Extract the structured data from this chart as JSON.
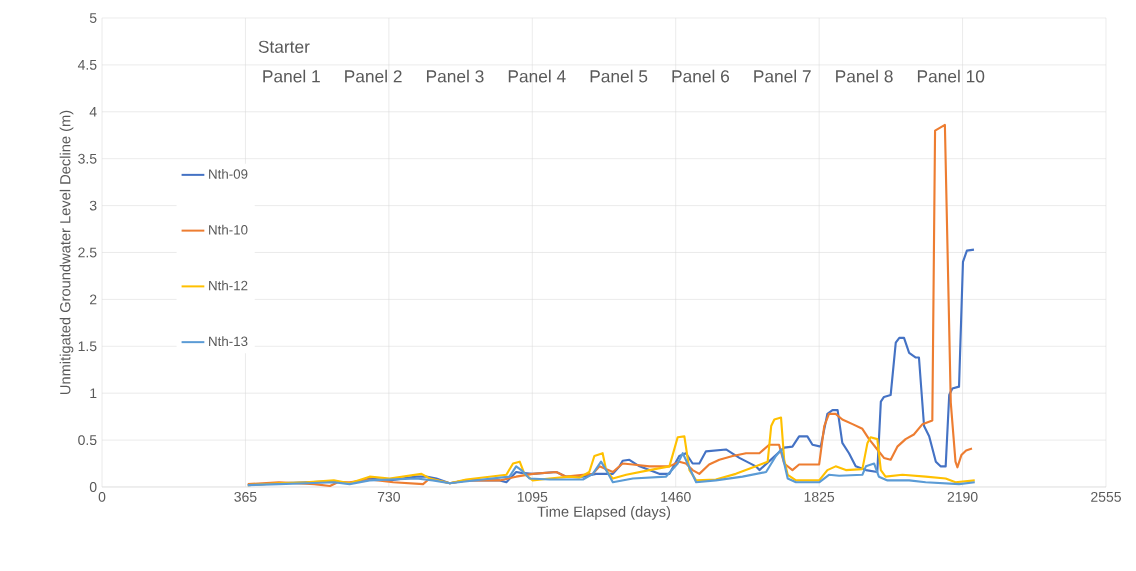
{
  "chart_data": {
    "type": "line",
    "xlabel": "Time Elapsed (days)",
    "ylabel": "Unmitigated Groundwater Level Decline (m)",
    "xlim": [
      0,
      2555
    ],
    "xticks": [
      0,
      365,
      730,
      1095,
      1460,
      1825,
      2190,
      2555
    ],
    "ylim": [
      0,
      5
    ],
    "yticks": [
      0,
      0.5,
      1,
      1.5,
      2,
      2.5,
      3,
      3.5,
      4,
      4.5,
      5
    ],
    "grid": true,
    "legend": "left",
    "annotations": [
      "Starter",
      "Panel 1",
      "Panel 2",
      "Panel 3",
      "Panel 4",
      "Panel 5",
      "Panel 6",
      "Panel 7",
      "Panel 8",
      "Panel 10"
    ],
    "series": [
      {
        "name": "Nth-09",
        "color": "#4472c4",
        "x": [
          371,
          450,
          520,
          590,
          630,
          681,
          732,
          800,
          825,
          851,
          885,
          927,
          1012,
          1029,
          1054,
          1067,
          1096,
          1156,
          1181,
          1224,
          1257,
          1300,
          1317,
          1325,
          1342,
          1368,
          1418,
          1444,
          1469,
          1486,
          1503,
          1520,
          1537,
          1588,
          1622,
          1664,
          1673,
          1736,
          1757,
          1774,
          1795,
          1808,
          1829,
          1846,
          1859,
          1872,
          1884,
          1901,
          1918,
          1944,
          1973,
          1982,
          1990,
          2007,
          2020,
          2029,
          2041,
          2054,
          2071,
          2079,
          2092,
          2105,
          2122,
          2134,
          2147,
          2156,
          2164,
          2181,
          2191,
          2201,
          2219
        ],
        "values": [
          0.02,
          0.04,
          0.05,
          0.06,
          0.04,
          0.09,
          0.07,
          0.11,
          0.11,
          0.09,
          0.04,
          0.07,
          0.07,
          0.05,
          0.16,
          0.15,
          0.14,
          0.16,
          0.11,
          0.11,
          0.14,
          0.14,
          0.22,
          0.28,
          0.29,
          0.22,
          0.14,
          0.14,
          0.33,
          0.36,
          0.25,
          0.25,
          0.38,
          0.4,
          0.31,
          0.22,
          0.18,
          0.42,
          0.43,
          0.54,
          0.54,
          0.45,
          0.43,
          0.78,
          0.82,
          0.82,
          0.47,
          0.36,
          0.22,
          0.18,
          0.16,
          0.91,
          0.96,
          0.98,
          1.54,
          1.59,
          1.59,
          1.43,
          1.38,
          1.38,
          0.65,
          0.54,
          0.27,
          0.22,
          0.22,
          0.98,
          1.05,
          1.07,
          2.4,
          2.52,
          2.53
        ]
      },
      {
        "name": "Nth-10",
        "color": "#ed7d31",
        "x": [
          371,
          450,
          540,
          580,
          600,
          630,
          681,
          741,
          817,
          834,
          885,
          927,
          1012,
          1054,
          1096,
          1156,
          1181,
          1249,
          1266,
          1300,
          1325,
          1351,
          1393,
          1444,
          1469,
          1486,
          1503,
          1520,
          1545,
          1571,
          1605,
          1639,
          1673,
          1698,
          1723,
          1736,
          1757,
          1774,
          1825,
          1838,
          1850,
          1867,
          1884,
          1910,
          1935,
          1952,
          1973,
          1990,
          2007,
          2024,
          2045,
          2066,
          2088,
          2113,
          2120,
          2145,
          2160,
          2172,
          2177,
          2187,
          2199,
          2214
        ],
        "values": [
          0.03,
          0.05,
          0.03,
          0.01,
          0.05,
          0.05,
          0.08,
          0.05,
          0.03,
          0.09,
          0.04,
          0.07,
          0.07,
          0.11,
          0.14,
          0.16,
          0.11,
          0.14,
          0.22,
          0.16,
          0.25,
          0.24,
          0.22,
          0.22,
          0.27,
          0.25,
          0.18,
          0.14,
          0.24,
          0.29,
          0.33,
          0.36,
          0.36,
          0.45,
          0.45,
          0.25,
          0.18,
          0.24,
          0.24,
          0.65,
          0.78,
          0.78,
          0.72,
          0.67,
          0.62,
          0.51,
          0.4,
          0.31,
          0.29,
          0.43,
          0.51,
          0.56,
          0.67,
          0.71,
          3.8,
          3.86,
          0.9,
          0.27,
          0.21,
          0.34,
          0.39,
          0.41
        ]
      },
      {
        "name": "Nth-12",
        "color": "#ffc000",
        "x": [
          371,
          450,
          520,
          590,
          630,
          681,
          732,
          813,
          834,
          885,
          927,
          1029,
          1046,
          1063,
          1075,
          1096,
          1139,
          1190,
          1215,
          1240,
          1253,
          1274,
          1283,
          1300,
          1334,
          1393,
          1444,
          1465,
          1482,
          1495,
          1512,
          1562,
          1613,
          1664,
          1694,
          1703,
          1711,
          1728,
          1736,
          1745,
          1766,
          1825,
          1846,
          1867,
          1893,
          1935,
          1948,
          1956,
          1973,
          1982,
          1994,
          2037,
          2096,
          2147,
          2172,
          2221
        ],
        "values": [
          0.02,
          0.04,
          0.05,
          0.07,
          0.04,
          0.11,
          0.09,
          0.14,
          0.09,
          0.04,
          0.08,
          0.13,
          0.25,
          0.27,
          0.14,
          0.07,
          0.09,
          0.11,
          0.1,
          0.16,
          0.33,
          0.36,
          0.18,
          0.09,
          0.13,
          0.18,
          0.22,
          0.53,
          0.54,
          0.18,
          0.07,
          0.08,
          0.14,
          0.22,
          0.27,
          0.65,
          0.72,
          0.74,
          0.29,
          0.13,
          0.07,
          0.07,
          0.18,
          0.22,
          0.18,
          0.19,
          0.47,
          0.53,
          0.51,
          0.18,
          0.11,
          0.13,
          0.11,
          0.09,
          0.05,
          0.07
        ]
      },
      {
        "name": "Nth-13",
        "color": "#5b9bd5",
        "x": [
          371,
          450,
          520,
          590,
          630,
          681,
          800,
          842,
          885,
          969,
          1037,
          1054,
          1067,
          1088,
          1139,
          1224,
          1249,
          1270,
          1283,
          1300,
          1351,
          1435,
          1465,
          1478,
          1490,
          1512,
          1562,
          1630,
          1690,
          1715,
          1728,
          1745,
          1766,
          1825,
          1850,
          1876,
          1935,
          1944,
          1965,
          1977,
          1999,
          2054,
          2096,
          2181,
          2221
        ],
        "values": [
          0.02,
          0.03,
          0.04,
          0.05,
          0.03,
          0.07,
          0.09,
          0.07,
          0.04,
          0.08,
          0.11,
          0.22,
          0.18,
          0.09,
          0.08,
          0.08,
          0.14,
          0.27,
          0.18,
          0.05,
          0.09,
          0.11,
          0.25,
          0.36,
          0.25,
          0.05,
          0.07,
          0.11,
          0.16,
          0.33,
          0.4,
          0.09,
          0.05,
          0.05,
          0.13,
          0.12,
          0.13,
          0.22,
          0.25,
          0.11,
          0.07,
          0.07,
          0.05,
          0.03,
          0.05
        ]
      }
    ]
  }
}
